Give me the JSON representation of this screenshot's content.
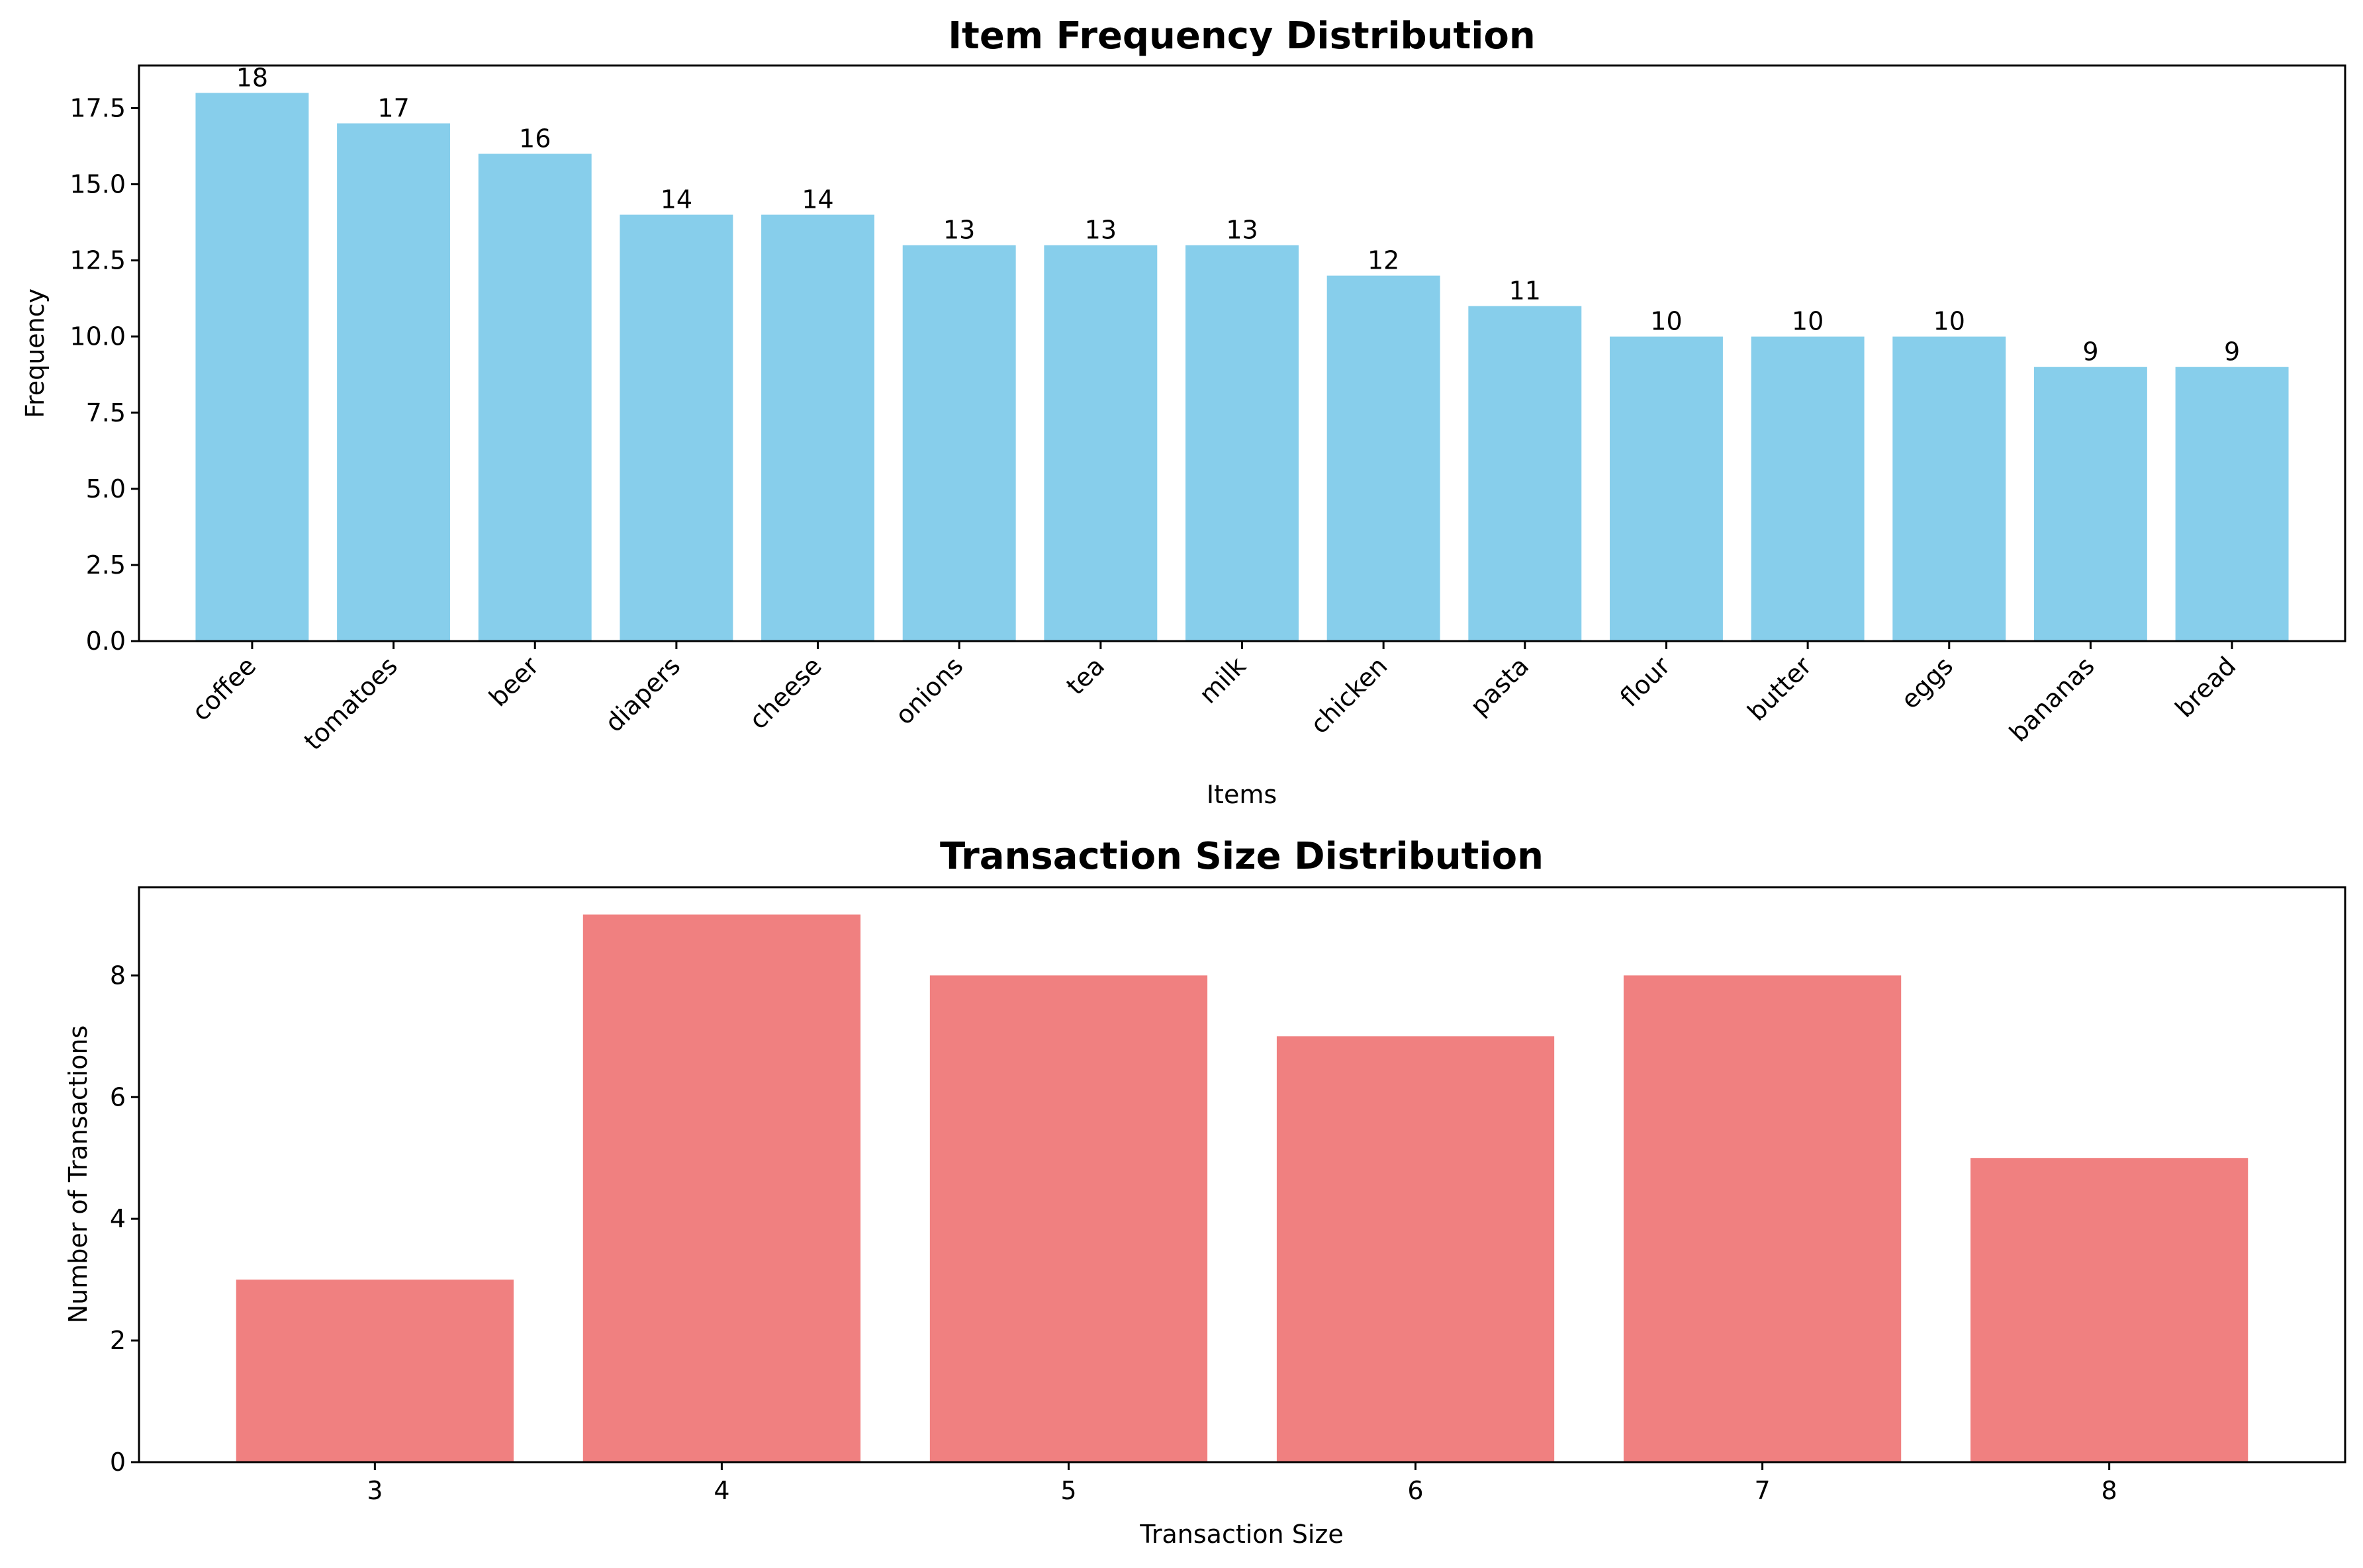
{
  "chart_data": [
    {
      "type": "bar",
      "title": "Item Frequency Distribution",
      "xlabel": "Items",
      "ylabel": "Frequency",
      "categories": [
        "coffee",
        "tomatoes",
        "beer",
        "diapers",
        "cheese",
        "onions",
        "tea",
        "milk",
        "chicken",
        "pasta",
        "flour",
        "butter",
        "eggs",
        "bananas",
        "bread"
      ],
      "values": [
        18,
        17,
        16,
        14,
        14,
        13,
        13,
        13,
        12,
        11,
        10,
        10,
        10,
        9,
        9
      ],
      "ylim": [
        0,
        18.9
      ],
      "yticks": [
        0.0,
        2.5,
        5.0,
        7.5,
        10.0,
        12.5,
        15.0,
        17.5
      ],
      "ytick_labels": [
        "0.0",
        "2.5",
        "5.0",
        "7.5",
        "10.0",
        "12.5",
        "15.0",
        "17.5"
      ],
      "data_labels": [
        "18",
        "17",
        "16",
        "14",
        "14",
        "13",
        "13",
        "13",
        "12",
        "11",
        "10",
        "10",
        "10",
        "9",
        "9"
      ],
      "bar_color": "#87CEEB",
      "xtick_rotation": "45 degrees",
      "grid": false,
      "legend": "none"
    },
    {
      "type": "bar",
      "title": "Transaction Size Distribution",
      "xlabel": "Transaction Size",
      "ylabel": "Number of Transactions",
      "categories": [
        "3",
        "4",
        "5",
        "6",
        "7",
        "8"
      ],
      "x": [
        3,
        4,
        5,
        6,
        7,
        8
      ],
      "values": [
        3,
        9,
        8,
        7,
        8,
        5
      ],
      "ylim": [
        0,
        9.45
      ],
      "yticks": [
        0,
        2,
        4,
        6,
        8
      ],
      "ytick_labels": [
        "0",
        "2",
        "4",
        "6",
        "8"
      ],
      "bar_color": "#F08080",
      "grid": false,
      "legend": "none"
    }
  ]
}
